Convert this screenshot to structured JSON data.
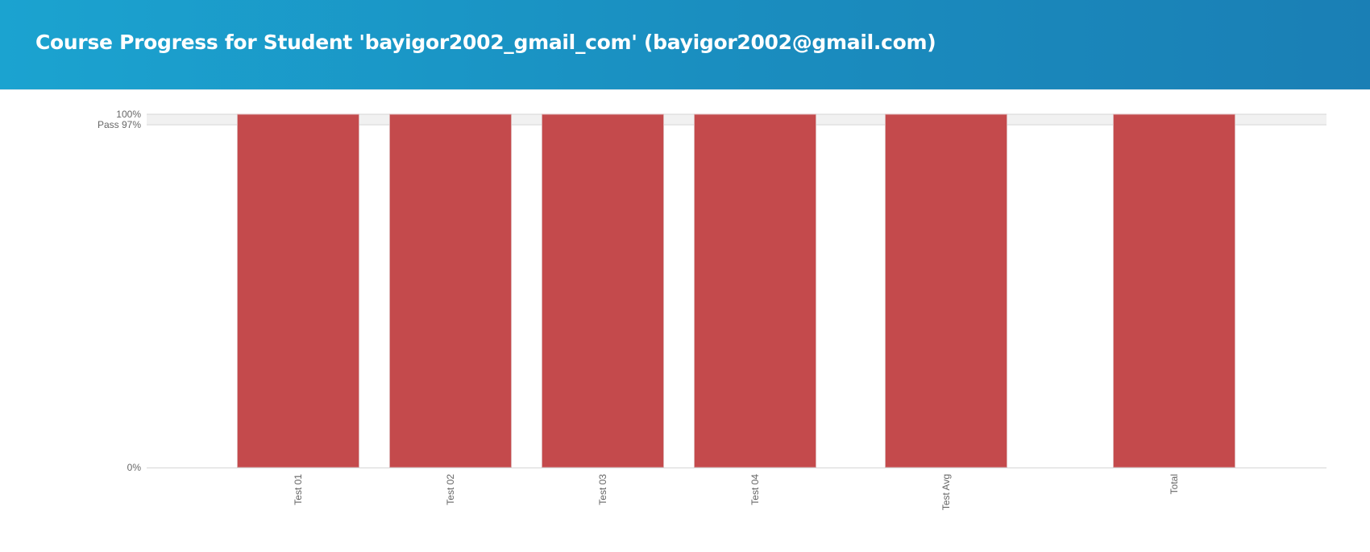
{
  "header": {
    "title": "Course Progress for Student 'bayigor2002_gmail_com' (bayigor2002@gmail.com)"
  },
  "colors": {
    "header_start": "#1ba3d0",
    "header_end": "#1a7fb5",
    "bar": "#c44a4c",
    "pass_band": "#f1f1f1",
    "axis": "#d6d6d6",
    "label": "#666666"
  },
  "chart_data": {
    "type": "bar",
    "categories": [
      "Test 01",
      "Test 02",
      "Test 03",
      "Test 04",
      "Test Avg",
      "Total"
    ],
    "values": [
      100,
      100,
      100,
      100,
      100,
      100
    ],
    "ylim": [
      0,
      100
    ],
    "y_ticks": [
      {
        "value": 0,
        "label": "0%"
      },
      {
        "value": 97,
        "label": "Pass 97%"
      },
      {
        "value": 100,
        "label": "100%"
      }
    ],
    "pass_threshold": 97,
    "xlabel": "",
    "ylabel": "",
    "grid": false
  }
}
